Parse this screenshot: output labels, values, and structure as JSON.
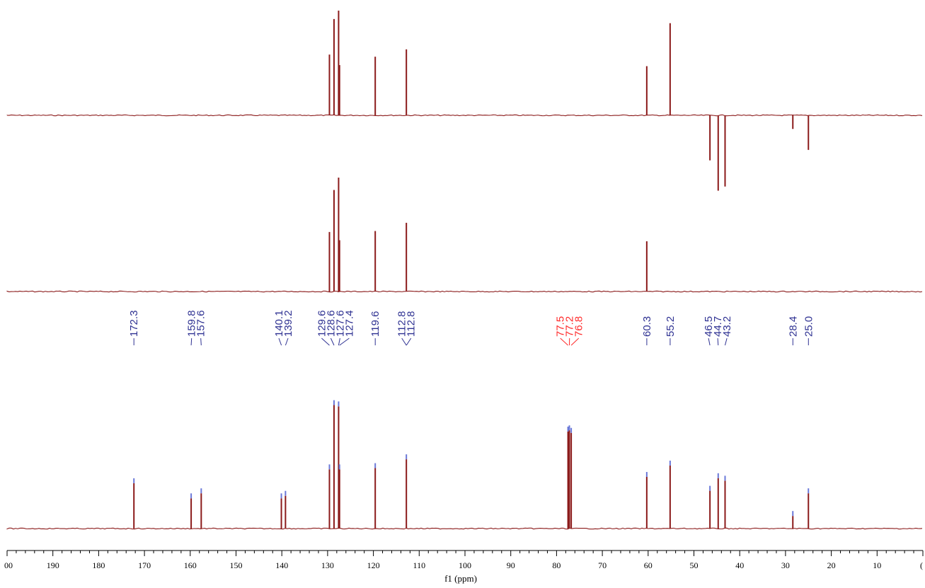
{
  "chart_data": {
    "type": "line",
    "xlabel": "f1 (ppm)",
    "xlim": [
      200,
      0
    ],
    "x_ticks": [
      "00",
      "190",
      "180",
      "170",
      "160",
      "150",
      "140",
      "130",
      "120",
      "110",
      "100",
      "90",
      "80",
      "70",
      "60",
      "50",
      "40",
      "30",
      "20",
      "10",
      "("
    ],
    "colors": {
      "trace": "#8b1a1a",
      "label": "#2e3192",
      "solvent_label": "#ff2a2a",
      "integral_mark": "#6a78d8"
    },
    "spectra": [
      {
        "peaks": [
          {
            "ppm": 129.6,
            "intensity": 0.58
          },
          {
            "ppm": 128.6,
            "intensity": 0.92
          },
          {
            "ppm": 127.6,
            "intensity": 1.0
          },
          {
            "ppm": 127.4,
            "intensity": 0.48
          },
          {
            "ppm": 119.6,
            "intensity": 0.56
          },
          {
            "ppm": 112.8,
            "intensity": 0.63
          },
          {
            "ppm": 60.3,
            "intensity": 0.47
          },
          {
            "ppm": 55.2,
            "intensity": 0.88
          },
          {
            "ppm": 46.5,
            "intensity": -0.43
          },
          {
            "ppm": 44.7,
            "intensity": -0.72
          },
          {
            "ppm": 43.2,
            "intensity": -0.68
          },
          {
            "ppm": 28.4,
            "intensity": -0.13
          },
          {
            "ppm": 25.0,
            "intensity": -0.33
          }
        ]
      },
      {
        "peaks": [
          {
            "ppm": 129.6,
            "intensity": 0.58
          },
          {
            "ppm": 128.6,
            "intensity": 0.99
          },
          {
            "ppm": 127.6,
            "intensity": 1.11
          },
          {
            "ppm": 127.4,
            "intensity": 0.5
          },
          {
            "ppm": 119.6,
            "intensity": 0.59
          },
          {
            "ppm": 112.8,
            "intensity": 0.67
          },
          {
            "ppm": 60.3,
            "intensity": 0.49
          }
        ]
      },
      {
        "peaks": [
          {
            "ppm": 172.3,
            "intensity": 0.36
          },
          {
            "ppm": 159.8,
            "intensity": 0.24
          },
          {
            "ppm": 157.6,
            "intensity": 0.28
          },
          {
            "ppm": 140.1,
            "intensity": 0.24
          },
          {
            "ppm": 139.2,
            "intensity": 0.26
          },
          {
            "ppm": 129.6,
            "intensity": 0.47
          },
          {
            "ppm": 128.6,
            "intensity": 0.98
          },
          {
            "ppm": 127.6,
            "intensity": 0.97
          },
          {
            "ppm": 127.4,
            "intensity": 0.47
          },
          {
            "ppm": 119.6,
            "intensity": 0.48
          },
          {
            "ppm": 112.8,
            "intensity": 0.55
          },
          {
            "ppm": 77.5,
            "intensity": 0.77
          },
          {
            "ppm": 77.2,
            "intensity": 0.78
          },
          {
            "ppm": 76.8,
            "intensity": 0.76
          },
          {
            "ppm": 60.3,
            "intensity": 0.41
          },
          {
            "ppm": 55.2,
            "intensity": 0.5
          },
          {
            "ppm": 46.5,
            "intensity": 0.3
          },
          {
            "ppm": 44.7,
            "intensity": 0.4
          },
          {
            "ppm": 43.2,
            "intensity": 0.38
          },
          {
            "ppm": 28.4,
            "intensity": 0.1
          },
          {
            "ppm": 25.0,
            "intensity": 0.28
          }
        ]
      }
    ],
    "peak_label_groups": [
      {
        "labels": [
          "172.3"
        ],
        "ppm": [
          172.3
        ],
        "solvent": false
      },
      {
        "labels": [
          "159.8",
          "157.6"
        ],
        "ppm": [
          159.8,
          157.6
        ],
        "solvent": false
      },
      {
        "labels": [
          "140.1",
          "139.2"
        ],
        "ppm": [
          140.1,
          139.2
        ],
        "solvent": false
      },
      {
        "labels": [
          "129.6",
          "128.6",
          "127.6",
          "127.4"
        ],
        "ppm": [
          129.6,
          128.6,
          127.6,
          127.4
        ],
        "solvent": false
      },
      {
        "labels": [
          "119.6"
        ],
        "ppm": [
          119.6
        ],
        "solvent": false
      },
      {
        "labels": [
          "112.8",
          "112.8"
        ],
        "ppm": [
          112.8,
          112.8
        ],
        "solvent": false
      },
      {
        "labels": [
          "77.5",
          "77.2",
          "76.8"
        ],
        "ppm": [
          77.5,
          77.2,
          76.8
        ],
        "solvent": true
      },
      {
        "labels": [
          "60.3"
        ],
        "ppm": [
          60.3
        ],
        "solvent": false
      },
      {
        "labels": [
          "55.2"
        ],
        "ppm": [
          55.2
        ],
        "solvent": false
      },
      {
        "labels": [
          "46.5",
          "44.7",
          "43.2"
        ],
        "ppm": [
          46.5,
          44.7,
          43.2
        ],
        "solvent": false
      },
      {
        "labels": [
          "28.4"
        ],
        "ppm": [
          28.4
        ],
        "solvent": false
      },
      {
        "labels": [
          "25.0"
        ],
        "ppm": [
          25.0
        ],
        "solvent": false
      }
    ]
  }
}
